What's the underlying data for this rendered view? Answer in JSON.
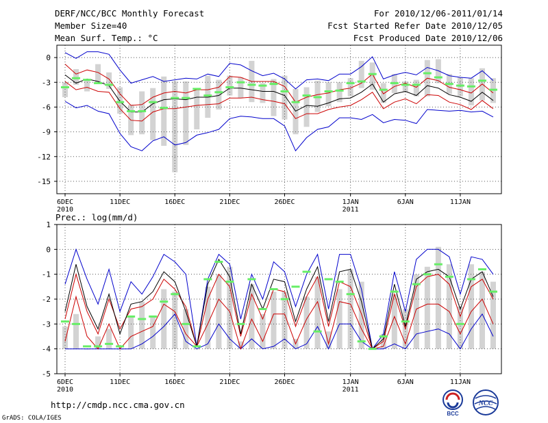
{
  "header": {
    "title": "DERF/NCC/BCC Monthly Forecast",
    "member": "Member Size=40",
    "variable": "Mean Surf. Temp.: °C",
    "fcst_for": "For 2010/12/06-2011/01/14",
    "refer": "Fcst Started Refer Date 2010/12/05",
    "produced": "Fcst Produced Date 2010/12/06"
  },
  "footer": {
    "url": "http://cmdp.ncc.cma.gov.cn",
    "grads": "GrADS: COLA/IGES",
    "logo_bcc": "BCC",
    "logo_ncc": "NCC"
  },
  "colors": {
    "ensemble_mean": "#000000",
    "envelope": "#0000cc",
    "spread": "#cc0000",
    "box": "#d3d3d3",
    "observation_marker": "#66ee66"
  },
  "chart_data": [
    {
      "type": "line",
      "title": "Mean Surf. Temp.: °C",
      "x": [
        "6DEC",
        "7DEC",
        "8DEC",
        "9DEC",
        "10DEC",
        "11DEC",
        "12DEC",
        "13DEC",
        "14DEC",
        "15DEC",
        "16DEC",
        "17DEC",
        "18DEC",
        "19DEC",
        "20DEC",
        "21DEC",
        "22DEC",
        "23DEC",
        "24DEC",
        "25DEC",
        "26DEC",
        "27DEC",
        "28DEC",
        "29DEC",
        "30DEC",
        "31DEC",
        "1JAN",
        "2JAN",
        "3JAN",
        "4JAN",
        "5JAN",
        "6JAN",
        "7JAN",
        "8JAN",
        "9JAN",
        "10JAN",
        "11JAN",
        "12JAN",
        "13JAN",
        "14JAN"
      ],
      "xtick_labels": [
        [
          "6DEC",
          "2010"
        ],
        [
          "11DEC",
          ""
        ],
        [
          "16DEC",
          ""
        ],
        [
          "21DEC",
          ""
        ],
        [
          "26DEC",
          ""
        ],
        [
          "1JAN",
          "2011"
        ],
        [
          "6JAN",
          ""
        ],
        [
          "11JAN",
          ""
        ]
      ],
      "xtick_index": [
        0,
        5,
        10,
        15,
        20,
        26,
        31,
        36
      ],
      "ylim": [
        -16.5,
        1.5
      ],
      "yticks": [
        0,
        -3,
        -6,
        -9,
        -12,
        -15
      ],
      "series": [
        {
          "name": "max",
          "values": [
            0.6,
            -0.1,
            0.7,
            0.7,
            0.4,
            -1.5,
            -3.1,
            -2.7,
            -2.3,
            -2.9,
            -2.7,
            -2.5,
            -2.6,
            -2.0,
            -2.3,
            -0.7,
            -0.9,
            -1.6,
            -2.2,
            -1.9,
            -2.6,
            -3.8,
            -2.7,
            -2.6,
            -2.8,
            -2.0,
            -2.0,
            -1.1,
            0.1,
            -2.6,
            -2.1,
            -1.8,
            -2.1,
            -1.2,
            -1.6,
            -2.2,
            -2.4,
            -2.5,
            -1.6,
            -2.8
          ]
        },
        {
          "name": "upper",
          "values": [
            -0.8,
            -2.0,
            -1.5,
            -1.8,
            -2.6,
            -4.4,
            -5.8,
            -5.7,
            -4.8,
            -4.3,
            -4.1,
            -4.3,
            -3.9,
            -3.9,
            -3.6,
            -2.3,
            -2.4,
            -2.9,
            -2.9,
            -2.9,
            -3.5,
            -5.4,
            -4.8,
            -4.5,
            -4.3,
            -3.9,
            -3.7,
            -3.1,
            -2.0,
            -4.4,
            -3.5,
            -3.1,
            -3.6,
            -2.5,
            -2.8,
            -3.6,
            -3.9,
            -4.3,
            -3.2,
            -4.3
          ]
        },
        {
          "name": "mean",
          "values": [
            -2.1,
            -3.1,
            -2.6,
            -2.9,
            -3.4,
            -5.3,
            -6.6,
            -6.6,
            -5.6,
            -5.1,
            -5.0,
            -5.1,
            -4.8,
            -4.8,
            -4.6,
            -3.7,
            -3.7,
            -3.9,
            -4.1,
            -4.1,
            -4.6,
            -6.5,
            -5.8,
            -5.9,
            -5.5,
            -5.0,
            -4.9,
            -4.2,
            -3.2,
            -5.4,
            -4.4,
            -4.1,
            -4.6,
            -3.4,
            -3.7,
            -4.5,
            -4.8,
            -5.3,
            -4.2,
            -5.2
          ]
        },
        {
          "name": "lower",
          "values": [
            -2.9,
            -3.9,
            -3.6,
            -4.1,
            -4.2,
            -6.2,
            -7.6,
            -7.7,
            -6.6,
            -6.2,
            -6.2,
            -6.0,
            -5.8,
            -5.7,
            -5.6,
            -4.9,
            -4.9,
            -4.8,
            -5.1,
            -5.3,
            -5.6,
            -7.4,
            -6.8,
            -6.8,
            -6.3,
            -6.0,
            -5.8,
            -5.1,
            -4.2,
            -6.2,
            -5.4,
            -5.0,
            -5.6,
            -4.5,
            -4.6,
            -5.4,
            -5.7,
            -6.3,
            -5.2,
            -6.2
          ]
        },
        {
          "name": "min",
          "values": [
            -5.3,
            -6.1,
            -5.8,
            -6.5,
            -6.8,
            -9.2,
            -10.8,
            -11.3,
            -10.1,
            -9.6,
            -10.6,
            -10.3,
            -9.4,
            -9.1,
            -8.7,
            -7.4,
            -7.1,
            -7.2,
            -7.4,
            -7.4,
            -8.3,
            -11.3,
            -9.7,
            -8.7,
            -8.4,
            -7.3,
            -7.3,
            -7.5,
            -6.9,
            -7.9,
            -7.5,
            -7.6,
            -8.0,
            -6.3,
            -6.4,
            -6.5,
            -6.4,
            -6.6,
            -6.5,
            -7.2
          ]
        },
        {
          "name": "box_top",
          "values": [
            -3.0,
            -1.4,
            -2.8,
            -0.8,
            -1.8,
            -3.6,
            -5.7,
            -4.1,
            -3.7,
            -2.3,
            -2.9,
            -2.9,
            -3.9,
            -2.2,
            -2.7,
            -2.2,
            -2.4,
            -0.4,
            -3.1,
            -2.6,
            -2.2,
            -3.8,
            -3.6,
            -2.8,
            -3.0,
            -3.0,
            -2.5,
            -0.4,
            -0.6,
            -3.1,
            -2.0,
            -2.9,
            -2.7,
            -0.3,
            -0.2,
            -2.0,
            -2.4,
            -2.5,
            -1.3,
            -2.5
          ]
        },
        {
          "name": "box_bottom",
          "values": [
            -4.8,
            -3.3,
            -4.1,
            -3.1,
            -3.8,
            -6.8,
            -9.4,
            -9.3,
            -10.0,
            -10.7,
            -13.9,
            -10.6,
            -8.7,
            -7.3,
            -6.3,
            -4.6,
            -4.9,
            -5.4,
            -5.5,
            -7.1,
            -7.5,
            -9.3,
            -8.4,
            -6.6,
            -5.9,
            -5.4,
            -4.7,
            -3.7,
            -3.9,
            -5.5,
            -4.3,
            -4.2,
            -4.7,
            -4.7,
            -3.1,
            -4.4,
            -4.7,
            -5.8,
            -5.2,
            -5.5
          ]
        },
        {
          "name": "observed",
          "values": [
            -3.6,
            -2.5,
            -2.7,
            -3.1,
            -3.3,
            -5.4,
            -6.5,
            -6.5,
            -5.4,
            -6.1,
            -4.9,
            -4.9,
            -3.8,
            -4.6,
            -4.2,
            -3.6,
            -3.0,
            -3.3,
            -3.4,
            -3.2,
            -4.1,
            -5.4,
            -4.6,
            -4.8,
            -4.1,
            -4.0,
            -3.1,
            -2.9,
            -2.0,
            -3.9,
            -3.1,
            -3.3,
            -3.3,
            -1.9,
            -2.4,
            -3.2,
            -3.4,
            -3.5,
            -2.8,
            -3.9
          ]
        }
      ]
    },
    {
      "type": "line",
      "title": "Prec.: log(mm/d)",
      "x": [
        "6DEC",
        "7DEC",
        "8DEC",
        "9DEC",
        "10DEC",
        "11DEC",
        "12DEC",
        "13DEC",
        "14DEC",
        "15DEC",
        "16DEC",
        "17DEC",
        "18DEC",
        "19DEC",
        "20DEC",
        "21DEC",
        "22DEC",
        "23DEC",
        "24DEC",
        "25DEC",
        "26DEC",
        "27DEC",
        "28DEC",
        "29DEC",
        "30DEC",
        "31DEC",
        "1JAN",
        "2JAN",
        "3JAN",
        "4JAN",
        "5JAN",
        "6JAN",
        "7JAN",
        "8JAN",
        "9JAN",
        "10JAN",
        "11JAN",
        "12JAN",
        "13JAN",
        "14JAN"
      ],
      "xtick_labels": [
        [
          "6DEC",
          "2010"
        ],
        [
          "11DEC",
          ""
        ],
        [
          "16DEC",
          ""
        ],
        [
          "21DEC",
          ""
        ],
        [
          "26DEC",
          ""
        ],
        [
          "1JAN",
          "2011"
        ],
        [
          "6JAN",
          ""
        ],
        [
          "11JAN",
          ""
        ]
      ],
      "xtick_index": [
        0,
        5,
        10,
        15,
        20,
        26,
        31,
        36
      ],
      "ylim": [
        -5,
        1
      ],
      "yticks": [
        1,
        0,
        -1,
        -2,
        -3,
        -4,
        -5
      ],
      "ylabel": "Prec.: log(mm/d)",
      "series": [
        {
          "name": "max",
          "values": [
            -1.4,
            0.0,
            -1.2,
            -2.2,
            -0.8,
            -2.5,
            -1.3,
            -1.8,
            -1.1,
            -0.2,
            -0.5,
            -1.0,
            -3.9,
            -1.2,
            -0.2,
            -0.6,
            -2.8,
            -1.0,
            -2.0,
            -0.5,
            -0.9,
            -2.3,
            -1.0,
            -0.2,
            -2.4,
            -0.2,
            -0.2,
            -1.6,
            -4.0,
            -3.4,
            -0.9,
            -2.5,
            -0.4,
            0.0,
            0.0,
            -0.3,
            -1.8,
            -0.3,
            -0.4,
            -1.0
          ]
        },
        {
          "name": "upper",
          "values": [
            -2.8,
            -1.0,
            -2.5,
            -3.4,
            -2.0,
            -3.2,
            -2.4,
            -2.3,
            -2.0,
            -1.2,
            -1.6,
            -2.3,
            -3.9,
            -2.0,
            -1.0,
            -1.5,
            -3.5,
            -1.8,
            -2.8,
            -1.6,
            -1.7,
            -3.1,
            -1.9,
            -1.1,
            -3.1,
            -1.3,
            -1.5,
            -2.6,
            -4.0,
            -3.7,
            -1.8,
            -3.2,
            -1.5,
            -1.1,
            -1.0,
            -1.4,
            -2.7,
            -1.5,
            -1.2,
            -2.0
          ]
        },
        {
          "name": "mean",
          "values": [
            -2.5,
            -0.6,
            -2.3,
            -3.2,
            -1.8,
            -3.4,
            -2.2,
            -2.1,
            -1.7,
            -0.9,
            -1.3,
            -2.5,
            -3.9,
            -1.4,
            -0.4,
            -1.1,
            -3.4,
            -1.4,
            -2.4,
            -1.2,
            -1.3,
            -2.9,
            -1.6,
            -0.7,
            -2.9,
            -0.9,
            -0.8,
            -2.1,
            -4.0,
            -3.6,
            -1.4,
            -3.1,
            -1.2,
            -0.9,
            -0.8,
            -1.1,
            -2.4,
            -1.2,
            -0.9,
            -1.9
          ]
        },
        {
          "name": "lower",
          "values": [
            -3.7,
            -1.9,
            -3.5,
            -4.0,
            -3.0,
            -4.0,
            -3.5,
            -3.3,
            -3.1,
            -2.2,
            -2.5,
            -3.4,
            -3.9,
            -3.0,
            -2.0,
            -2.5,
            -4.0,
            -2.8,
            -3.7,
            -2.6,
            -2.6,
            -3.8,
            -2.8,
            -2.1,
            -3.8,
            -2.1,
            -2.2,
            -3.2,
            -4.0,
            -3.9,
            -2.7,
            -3.8,
            -2.4,
            -2.2,
            -2.2,
            -2.5,
            -3.4,
            -2.5,
            -2.0,
            -3.0
          ]
        },
        {
          "name": "min",
          "values": [
            -4.0,
            -4.0,
            -4.0,
            -4.0,
            -4.0,
            -4.0,
            -4.0,
            -3.8,
            -3.5,
            -3.1,
            -2.6,
            -3.7,
            -4.0,
            -3.8,
            -3.0,
            -3.6,
            -4.0,
            -3.6,
            -4.0,
            -3.9,
            -3.6,
            -4.0,
            -3.8,
            -3.1,
            -4.0,
            -3.0,
            -3.0,
            -3.7,
            -4.0,
            -4.0,
            -3.8,
            -4.0,
            -3.4,
            -3.3,
            -3.2,
            -3.4,
            -4.0,
            -3.2,
            -2.6,
            -3.5
          ]
        },
        {
          "name": "box_top",
          "values": [
            -3.1,
            -2.6,
            -4.0,
            -3.5,
            -3.2,
            -4.0,
            -2.7,
            -2.1,
            -2.7,
            -1.6,
            -1.7,
            -2.4,
            -4.0,
            -1.5,
            -1.0,
            -0.7,
            -3.7,
            -1.4,
            -2.6,
            -1.7,
            -1.7,
            -3.6,
            -1.9,
            -1.1,
            -3.3,
            -1.6,
            -0.8,
            -1.3,
            -4.0,
            -3.4,
            -1.8,
            -2.4,
            -1.0,
            -0.7,
            0.1,
            -0.6,
            -2.3,
            -0.6,
            -0.9,
            -1.3
          ]
        },
        {
          "name": "box_bottom",
          "values": [
            -4.0,
            -4.0,
            -4.0,
            -4.0,
            -4.0,
            -4.0,
            -4.0,
            -4.0,
            -4.0,
            -4.0,
            -4.0,
            -4.0,
            -4.0,
            -4.0,
            -4.0,
            -4.0,
            -4.0,
            -4.0,
            -4.0,
            -4.0,
            -4.0,
            -4.0,
            -4.0,
            -4.0,
            -4.0,
            -4.0,
            -4.0,
            -4.0,
            -4.0,
            -4.0,
            -4.0,
            -4.0,
            -4.0,
            -4.0,
            -4.0,
            -4.0,
            -4.0,
            -4.0,
            -4.0,
            -4.0
          ]
        },
        {
          "name": "observed",
          "values": [
            -2.9,
            -3.0,
            -3.9,
            -3.9,
            -3.8,
            -3.9,
            -2.7,
            -2.8,
            -2.7,
            -2.1,
            -1.8,
            -3.0,
            -3.9,
            -1.2,
            -0.5,
            -1.3,
            -3.0,
            -1.2,
            -2.4,
            -1.6,
            -2.0,
            -1.5,
            -0.9,
            -3.3,
            -1.2,
            -1.3,
            -1.8,
            -3.7,
            -4.0,
            -3.5,
            -1.7,
            -2.9,
            -1.4,
            -1.0,
            -0.6,
            -1.1,
            -3.0,
            -1.2,
            -0.8,
            -1.7
          ]
        }
      ]
    }
  ]
}
